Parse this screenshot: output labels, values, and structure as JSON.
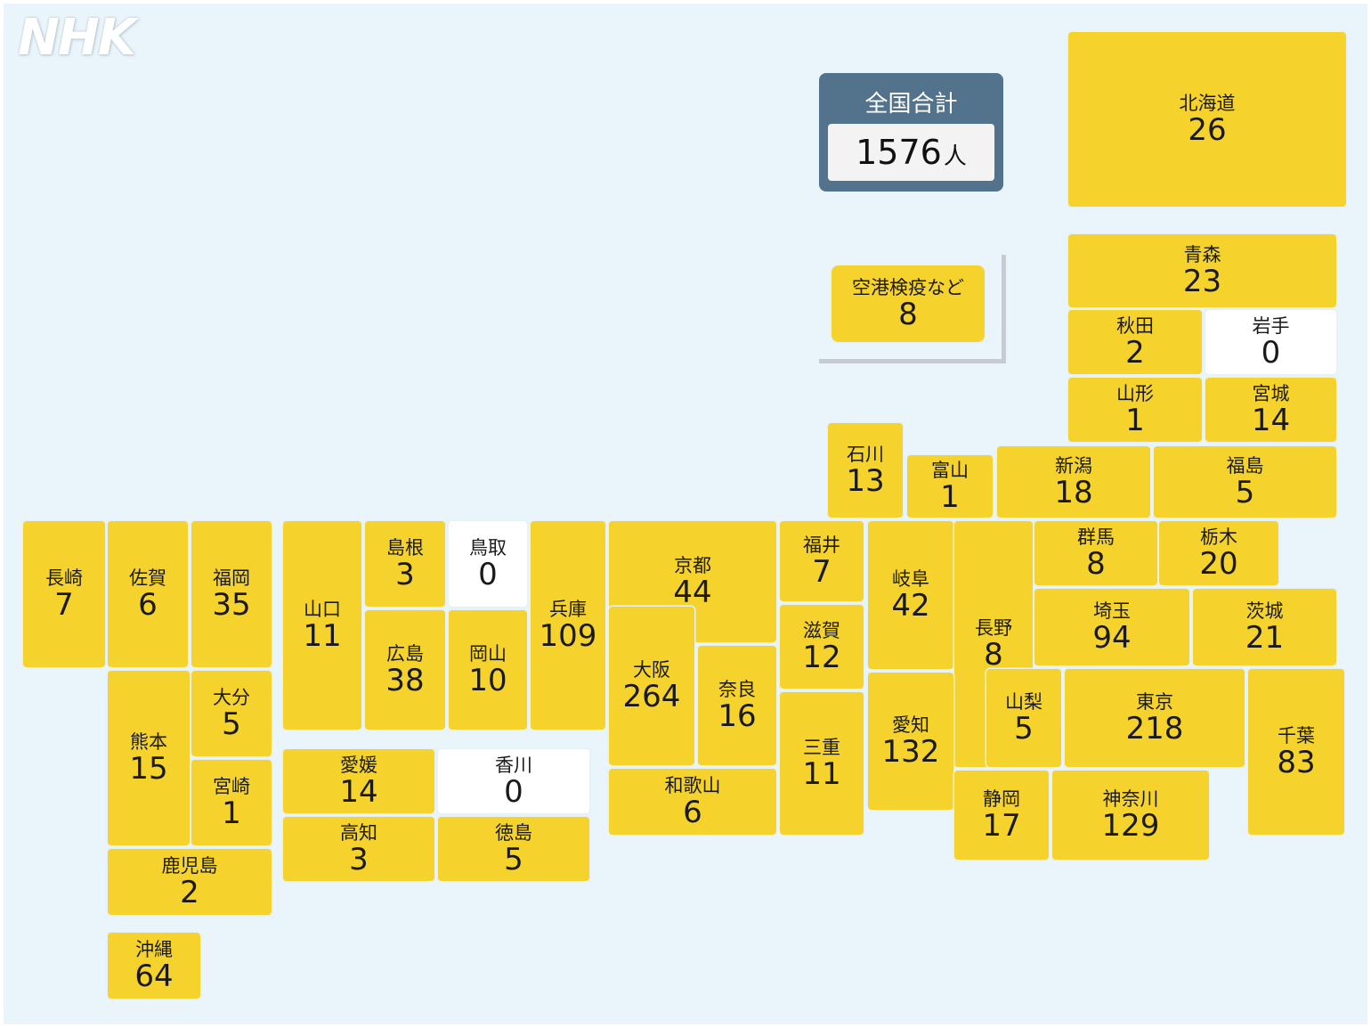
{
  "logo": "NHK",
  "total": {
    "title": "全国合計",
    "value": "1576",
    "unit": "人"
  },
  "airport": {
    "name": "空港検疫など",
    "value": "8"
  },
  "zero_color": "#ffffff",
  "fill_color": "#f5d32c",
  "prefectures": [
    {
      "id": "hokkaido",
      "name": "北海道",
      "value": "26"
    },
    {
      "id": "aomori",
      "name": "青森",
      "value": "23"
    },
    {
      "id": "akita",
      "name": "秋田",
      "value": "2"
    },
    {
      "id": "iwate",
      "name": "岩手",
      "value": "0"
    },
    {
      "id": "yamagata",
      "name": "山形",
      "value": "1"
    },
    {
      "id": "miyagi",
      "name": "宮城",
      "value": "14"
    },
    {
      "id": "ishikawa",
      "name": "石川",
      "value": "13"
    },
    {
      "id": "toyama",
      "name": "富山",
      "value": "1"
    },
    {
      "id": "niigata",
      "name": "新潟",
      "value": "18"
    },
    {
      "id": "fukushima",
      "name": "福島",
      "value": "5"
    },
    {
      "id": "nagasaki",
      "name": "長崎",
      "value": "7"
    },
    {
      "id": "saga",
      "name": "佐賀",
      "value": "6"
    },
    {
      "id": "fukuoka",
      "name": "福岡",
      "value": "35"
    },
    {
      "id": "yamaguchi",
      "name": "山口",
      "value": "11"
    },
    {
      "id": "shimane",
      "name": "島根",
      "value": "3"
    },
    {
      "id": "tottori",
      "name": "鳥取",
      "value": "0"
    },
    {
      "id": "hyogo",
      "name": "兵庫",
      "value": "109"
    },
    {
      "id": "kyoto",
      "name": "京都",
      "value": "44"
    },
    {
      "id": "fukui",
      "name": "福井",
      "value": "7"
    },
    {
      "id": "gifu",
      "name": "岐阜",
      "value": "42"
    },
    {
      "id": "nagano",
      "name": "長野",
      "value": "8"
    },
    {
      "id": "gunma",
      "name": "群馬",
      "value": "8"
    },
    {
      "id": "tochigi",
      "name": "栃木",
      "value": "20"
    },
    {
      "id": "saitama",
      "name": "埼玉",
      "value": "94"
    },
    {
      "id": "ibaraki",
      "name": "茨城",
      "value": "21"
    },
    {
      "id": "hiroshima",
      "name": "広島",
      "value": "38"
    },
    {
      "id": "okayama",
      "name": "岡山",
      "value": "10"
    },
    {
      "id": "osaka",
      "name": "大阪",
      "value": "264"
    },
    {
      "id": "nara",
      "name": "奈良",
      "value": "16"
    },
    {
      "id": "shiga",
      "name": "滋賀",
      "value": "12"
    },
    {
      "id": "mie",
      "name": "三重",
      "value": "11"
    },
    {
      "id": "aichi",
      "name": "愛知",
      "value": "132"
    },
    {
      "id": "yamanashi",
      "name": "山梨",
      "value": "5"
    },
    {
      "id": "tokyo",
      "name": "東京",
      "value": "218"
    },
    {
      "id": "chiba",
      "name": "千葉",
      "value": "83"
    },
    {
      "id": "kumamoto",
      "name": "熊本",
      "value": "15"
    },
    {
      "id": "oita",
      "name": "大分",
      "value": "5"
    },
    {
      "id": "miyazaki",
      "name": "宮崎",
      "value": "1"
    },
    {
      "id": "ehime",
      "name": "愛媛",
      "value": "14"
    },
    {
      "id": "kagawa",
      "name": "香川",
      "value": "0"
    },
    {
      "id": "wakayama",
      "name": "和歌山",
      "value": "6"
    },
    {
      "id": "shizuoka",
      "name": "静岡",
      "value": "17"
    },
    {
      "id": "kanagawa",
      "name": "神奈川",
      "value": "129"
    },
    {
      "id": "kochi",
      "name": "高知",
      "value": "3"
    },
    {
      "id": "tokushima",
      "name": "徳島",
      "value": "5"
    },
    {
      "id": "kagoshima",
      "name": "鹿児島",
      "value": "2"
    },
    {
      "id": "okinawa",
      "name": "沖縄",
      "value": "64"
    }
  ]
}
